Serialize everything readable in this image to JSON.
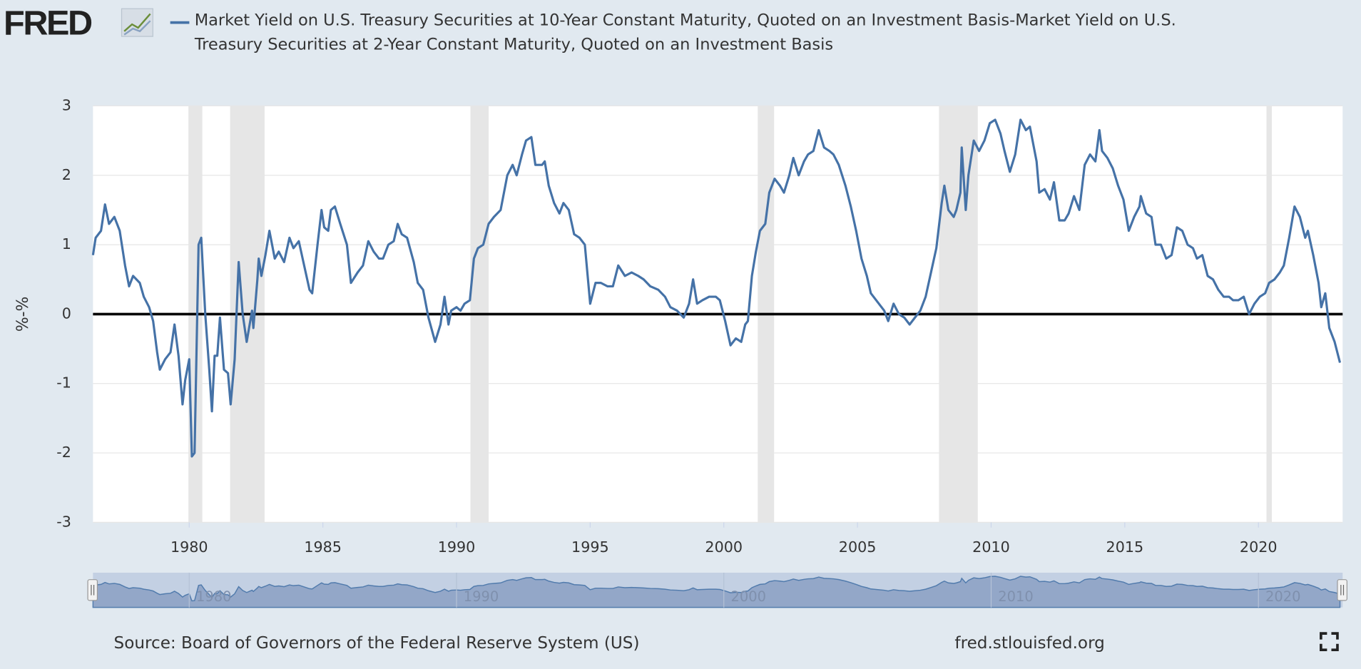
{
  "logo": "FRED",
  "chart_data": {
    "type": "line",
    "series": [
      {
        "name": "Market Yield on U.S. Treasury Securities at 10-Year Constant Maturity, Quoted on an Investment Basis-Market Yield on U.S. Treasury Securities at 2-Year Constant Maturity, Quoted on an Investment Basis",
        "color": "#4572a7",
        "values": [
          0.85,
          1.1,
          1.2,
          1.58,
          1.3,
          1.4,
          1.2,
          0.7,
          0.4,
          0.55,
          0.45,
          0.25,
          0.1,
          -0.1,
          -0.55,
          -0.8,
          -0.65,
          -0.55,
          -0.15,
          -0.6,
          -1.3,
          -0.95,
          -0.65,
          -2.05,
          -2.0,
          1.0,
          1.1,
          0.0,
          -0.8,
          -1.4,
          -0.6,
          -0.6,
          -0.05,
          -0.8,
          -0.85,
          -1.3,
          -0.65,
          0.75,
          0.0,
          -0.4,
          0.05,
          -0.2,
          0.5,
          0.8,
          0.55,
          0.85,
          1.2,
          0.8,
          0.9,
          0.75,
          1.1,
          0.95,
          1.05,
          0.7,
          0.35,
          0.3,
          1.0,
          1.5,
          1.25,
          1.2,
          1.5,
          1.55,
          1.3,
          1.0,
          0.45,
          0.6,
          0.7,
          1.05,
          0.9,
          0.8,
          0.8,
          1.0,
          1.05,
          1.3,
          1.15,
          1.1,
          0.75,
          0.45,
          0.35,
          -0.05,
          -0.4,
          -0.15,
          0.25,
          -0.15,
          0.05,
          0.1,
          0.05,
          0.15,
          0.2,
          0.8,
          0.95,
          1.0,
          1.3,
          1.4,
          1.5,
          2.0,
          2.15,
          2.0,
          2.3,
          2.5,
          2.55,
          2.15,
          2.15,
          2.2,
          1.85,
          1.6,
          1.45,
          1.6,
          1.5,
          1.15,
          1.1,
          1.0,
          0.15,
          0.45,
          0.45,
          0.4,
          0.4,
          0.7,
          0.55,
          0.6,
          0.55,
          0.5,
          0.4,
          0.35,
          0.25,
          0.1,
          0.05,
          -0.05,
          0.15,
          0.5,
          0.15,
          0.2,
          0.25,
          0.25,
          0.2,
          -0.1,
          -0.45,
          -0.35,
          -0.4,
          -0.15,
          -0.1,
          0.55,
          0.9,
          1.2,
          1.3,
          1.75,
          1.95,
          1.85,
          1.75,
          2.0,
          2.25,
          2.0,
          2.2,
          2.3,
          2.35,
          2.65,
          2.4,
          2.35,
          2.3,
          2.15,
          1.85,
          1.55,
          1.2,
          0.8,
          0.55,
          0.3,
          0.2,
          0.05,
          -0.1,
          0.15,
          0.0,
          -0.05,
          -0.15,
          -0.05,
          0.05,
          0.25,
          0.6,
          0.95,
          1.6,
          1.85,
          1.5,
          1.4,
          1.5,
          1.75,
          2.4,
          1.5,
          2.0,
          2.5,
          2.35,
          2.5,
          2.75,
          2.8,
          2.6,
          2.35,
          2.05,
          2.3,
          2.8,
          2.65,
          2.7,
          2.2,
          1.75,
          1.8,
          1.65,
          1.9,
          1.35,
          1.35,
          1.45,
          1.7,
          1.5,
          2.15,
          2.3,
          2.2,
          2.65,
          2.35,
          2.25,
          2.1,
          1.85,
          1.65,
          1.2,
          1.4,
          1.55,
          1.7,
          1.45,
          1.4,
          1.0,
          1.0,
          0.8,
          0.85,
          1.25,
          1.2,
          1.0,
          0.95,
          0.8,
          0.85,
          0.55,
          0.5,
          0.35,
          0.25,
          0.25,
          0.2,
          0.2,
          0.25,
          0.0,
          0.15,
          0.25,
          0.3,
          0.45,
          0.5,
          0.6,
          0.7,
          1.1,
          1.55,
          1.4,
          1.1,
          1.2,
          0.85,
          0.45,
          0.1,
          0.3,
          -0.2,
          -0.4,
          -0.7
        ]
      }
    ],
    "x": [
      1976.4,
      1976.5,
      1976.7,
      1976.85,
      1977.0,
      1977.2,
      1977.4,
      1977.6,
      1977.75,
      1977.9,
      1978.15,
      1978.3,
      1978.5,
      1978.65,
      1978.8,
      1978.9,
      1979.1,
      1979.3,
      1979.45,
      1979.6,
      1979.75,
      1979.85,
      1980.0,
      1980.1,
      1980.2,
      1980.35,
      1980.45,
      1980.6,
      1980.75,
      1980.85,
      1980.95,
      1981.05,
      1981.15,
      1981.3,
      1981.45,
      1981.55,
      1981.7,
      1981.85,
      1982.0,
      1982.15,
      1982.35,
      1982.4,
      1982.55,
      1982.6,
      1982.7,
      1982.85,
      1983.0,
      1983.2,
      1983.35,
      1983.55,
      1983.75,
      1983.9,
      1984.1,
      1984.3,
      1984.5,
      1984.6,
      1984.8,
      1984.95,
      1985.05,
      1985.2,
      1985.3,
      1985.45,
      1985.65,
      1985.9,
      1986.05,
      1986.3,
      1986.5,
      1986.7,
      1986.9,
      1987.1,
      1987.25,
      1987.45,
      1987.65,
      1987.8,
      1987.95,
      1988.15,
      1988.4,
      1988.55,
      1988.75,
      1988.95,
      1989.2,
      1989.4,
      1989.55,
      1989.7,
      1989.8,
      1990.0,
      1990.15,
      1990.3,
      1990.5,
      1990.65,
      1990.8,
      1991.0,
      1991.2,
      1991.4,
      1991.65,
      1991.9,
      1992.1,
      1992.25,
      1992.45,
      1992.6,
      1992.8,
      1992.95,
      1993.2,
      1993.3,
      1993.45,
      1993.65,
      1993.85,
      1994.0,
      1994.2,
      1994.4,
      1994.6,
      1994.8,
      1995.0,
      1995.2,
      1995.4,
      1995.65,
      1995.85,
      1996.05,
      1996.3,
      1996.55,
      1996.8,
      1997.0,
      1997.25,
      1997.55,
      1997.8,
      1998.0,
      1998.25,
      1998.5,
      1998.7,
      1998.85,
      1999.0,
      1999.2,
      1999.45,
      1999.7,
      1999.85,
      2000.05,
      2000.25,
      2000.45,
      2000.65,
      2000.8,
      2000.9,
      2001.05,
      2001.2,
      2001.35,
      2001.55,
      2001.7,
      2001.9,
      2002.1,
      2002.25,
      2002.45,
      2002.6,
      2002.8,
      2003.0,
      2003.15,
      2003.35,
      2003.55,
      2003.75,
      2003.95,
      2004.1,
      2004.3,
      2004.55,
      2004.75,
      2004.95,
      2005.15,
      2005.35,
      2005.5,
      2005.7,
      2006.0,
      2006.15,
      2006.35,
      2006.55,
      2006.75,
      2006.95,
      2007.15,
      2007.35,
      2007.55,
      2007.75,
      2007.95,
      2008.15,
      2008.25,
      2008.4,
      2008.6,
      2008.7,
      2008.85,
      2008.9,
      2009.05,
      2009.15,
      2009.35,
      2009.55,
      2009.75,
      2009.95,
      2010.15,
      2010.35,
      2010.5,
      2010.7,
      2010.9,
      2011.1,
      2011.3,
      2011.45,
      2011.7,
      2011.8,
      2012.0,
      2012.2,
      2012.35,
      2012.55,
      2012.75,
      2012.9,
      2013.1,
      2013.3,
      2013.5,
      2013.7,
      2013.9,
      2014.05,
      2014.15,
      2014.35,
      2014.55,
      2014.75,
      2014.95,
      2015.15,
      2015.35,
      2015.55,
      2015.6,
      2015.8,
      2016.0,
      2016.15,
      2016.35,
      2016.55,
      2016.75,
      2016.95,
      2017.15,
      2017.35,
      2017.55,
      2017.7,
      2017.9,
      2018.1,
      2018.3,
      2018.5,
      2018.7,
      2018.9,
      2019.05,
      2019.25,
      2019.45,
      2019.65,
      2019.85,
      2020.05,
      2020.25,
      2020.4,
      2020.6,
      2020.8,
      2020.95,
      2021.15,
      2021.35,
      2021.55,
      2021.75,
      2021.85,
      2022.05,
      2022.25,
      2022.35,
      2022.5,
      2022.65,
      2022.85,
      2023.05
    ],
    "xlim": [
      1976.4,
      2023.15
    ],
    "xticks": [
      1980,
      1985,
      1990,
      1995,
      2000,
      2005,
      2010,
      2015,
      2020
    ],
    "ylim": [
      -3,
      3
    ],
    "yticks": [
      -3,
      -2,
      -1,
      0,
      1,
      2,
      3
    ],
    "ylabel": "%-%",
    "grid": true,
    "zero_line": true,
    "shaded_ranges": [
      [
        1979.97,
        1980.49
      ],
      [
        1981.53,
        1982.82
      ],
      [
        1990.52,
        1991.2
      ],
      [
        2001.27,
        2001.88
      ],
      [
        2008.05,
        2009.5
      ],
      [
        2020.3,
        2020.5
      ]
    ],
    "navigator_xticks": [
      1980,
      1990,
      2000,
      2010,
      2020
    ],
    "source": "Source: Board of Governors of the Federal Reserve System (US)",
    "site": "fred.stlouisfed.org"
  }
}
